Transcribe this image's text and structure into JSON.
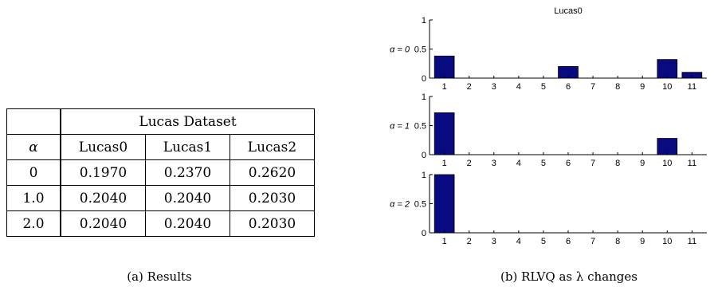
{
  "table": {
    "group_header": "Lucas Dataset",
    "alpha_header": "α",
    "columns": [
      "Lucas0",
      "Lucas1",
      "Lucas2"
    ],
    "rows": [
      {
        "alpha": "0",
        "values": [
          "0.1970",
          "0.2370",
          "0.2620"
        ]
      },
      {
        "alpha": "1.0",
        "values": [
          "0.2040",
          "0.2040",
          "0.2030"
        ]
      },
      {
        "alpha": "2.0",
        "values": [
          "0.2040",
          "0.2040",
          "0.2030"
        ]
      }
    ]
  },
  "captions": {
    "a": "(a) Results",
    "b": "(b) RLVQ as λ changes"
  },
  "chart_data": [
    {
      "type": "bar",
      "title": "Lucas0",
      "ylabel": "α = 0",
      "categories": [
        "1",
        "2",
        "3",
        "4",
        "5",
        "6",
        "7",
        "8",
        "9",
        "10",
        "11"
      ],
      "values": [
        0.38,
        0,
        0,
        0,
        0,
        0.2,
        0,
        0,
        0,
        0.32,
        0.1
      ],
      "ylim": [
        0,
        1
      ],
      "yticks": [
        "0",
        "0.5",
        "1"
      ],
      "bar_color": "#0a0a80"
    },
    {
      "type": "bar",
      "title": "",
      "ylabel": "α = 1",
      "categories": [
        "1",
        "2",
        "3",
        "4",
        "5",
        "6",
        "7",
        "8",
        "9",
        "10",
        "11"
      ],
      "values": [
        0.72,
        0,
        0,
        0,
        0,
        0,
        0,
        0,
        0,
        0.28,
        0
      ],
      "ylim": [
        0,
        1
      ],
      "yticks": [
        "0",
        "0.5",
        "1"
      ],
      "bar_color": "#0a0a80"
    },
    {
      "type": "bar",
      "title": "",
      "ylabel": "α = 2",
      "categories": [
        "1",
        "2",
        "3",
        "4",
        "5",
        "6",
        "7",
        "8",
        "9",
        "10",
        "11"
      ],
      "values": [
        1.0,
        0,
        0,
        0,
        0,
        0,
        0,
        0,
        0,
        0,
        0
      ],
      "ylim": [
        0,
        1
      ],
      "yticks": [
        "0",
        "0.5",
        "1"
      ],
      "bar_color": "#0a0a80"
    }
  ]
}
